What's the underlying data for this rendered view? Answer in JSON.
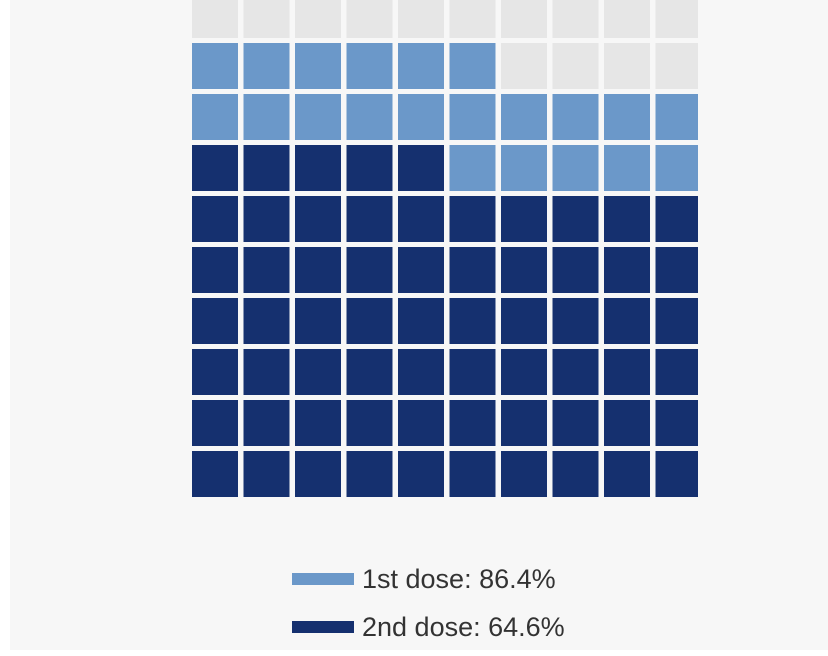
{
  "chart_data": {
    "type": "waffle",
    "grid": {
      "rows": 10,
      "cols": 10
    },
    "total_cells": 100,
    "series": [
      {
        "name": "1st dose",
        "value": 86.4,
        "unit": "%",
        "label": "1st dose: 86.4%",
        "color": "#6b98c9"
      },
      {
        "name": "2nd dose",
        "value": 64.6,
        "unit": "%",
        "label": "2nd dose: 64.6%",
        "color": "#15306f"
      }
    ],
    "empty_color": "#e6e6e6",
    "fill_direction": "bottom-up",
    "legend_position": "bottom-center"
  }
}
